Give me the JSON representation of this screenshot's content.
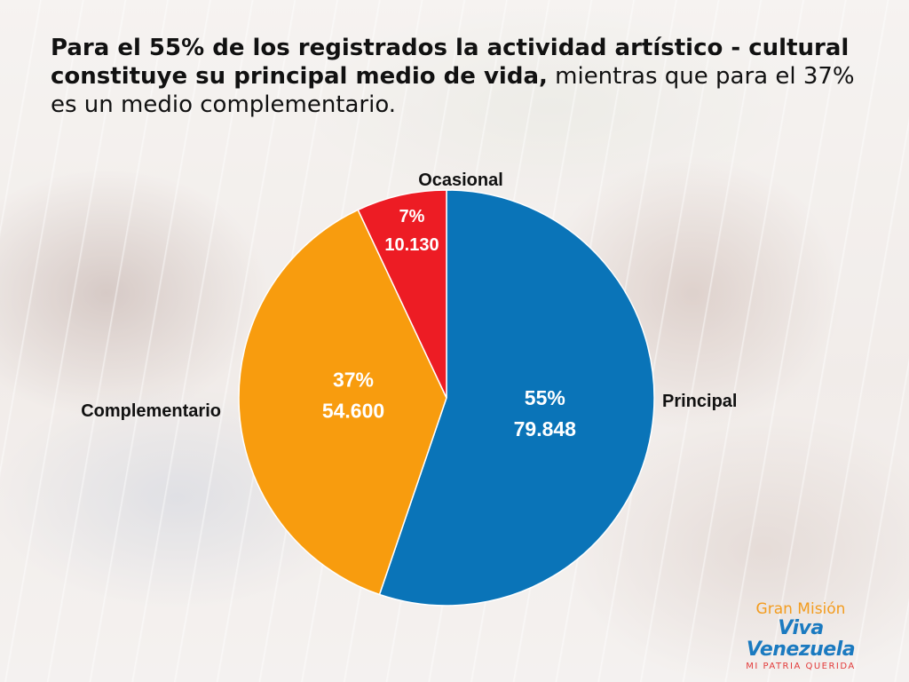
{
  "headline": {
    "bold": "Para el 55% de los registrados la actividad artístico - cultural constituye su principal medio de vida,",
    "regular": " mientras que para el 37% es un medio complementario."
  },
  "chart_data": {
    "type": "pie",
    "title": "",
    "slices": [
      {
        "label": "Principal",
        "percent_label": "55%",
        "value_label": "79.848",
        "value": 79848,
        "color": "#0a74b8"
      },
      {
        "label": "Complementario",
        "percent_label": "37%",
        "value_label": "54.600",
        "value": 54600,
        "color": "#f89c0e"
      },
      {
        "label": "Ocasional",
        "percent_label": "7%",
        "value_label": "10.130",
        "value": 10130,
        "color": "#ed1c24"
      }
    ],
    "start_angle": "12 o'clock",
    "direction": "clockwise",
    "legend": "none"
  },
  "logo": {
    "line1": "Gran Misión",
    "line2": "Viva Venezuela",
    "line3": "MI PATRIA QUERIDA"
  }
}
